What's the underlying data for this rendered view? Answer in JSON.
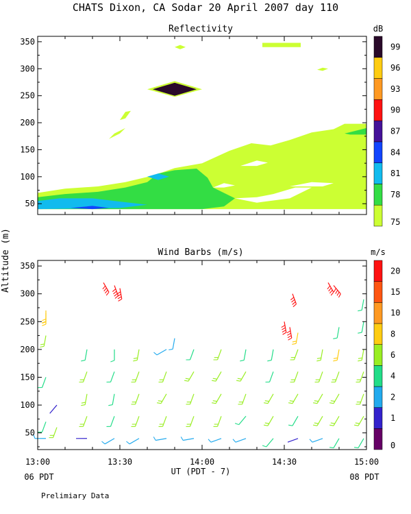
{
  "figure": {
    "title": "CHATS Dixon, CA  Sodar  20 April 2007  day 110",
    "ylabel": "Altitude (m)",
    "xlabel": "UT  (PDT - 7)",
    "left_date": "06 PDT",
    "right_date": "08 PDT",
    "footnote": "Prelimiary Data"
  },
  "chart_data": [
    {
      "type": "heatmap",
      "title": "Reflectivity",
      "x_tick_labels": [],
      "y_tick_labels": [
        "50",
        "100",
        "150",
        "200",
        "250",
        "300",
        "350"
      ],
      "y_ticks": [
        50,
        100,
        150,
        200,
        250,
        300,
        350
      ],
      "xlim_minutes": [
        0,
        120
      ],
      "ylim": [
        30,
        360
      ],
      "colorbar": {
        "unit": "dB",
        "levels": [
          "75",
          "78",
          "81",
          "84",
          "87",
          "90",
          "93",
          "96",
          "99"
        ],
        "colors": [
          "#ccff33",
          "#33dd44",
          "#11bbee",
          "#1144ff",
          "#441199",
          "#ff1111",
          "#ff9922",
          "#ffcc11",
          "#2a0a2a"
        ]
      },
      "regions": [
        {
          "level": "75",
          "points": [
            [
              0,
              70
            ],
            [
              10,
              78
            ],
            [
              22,
              82
            ],
            [
              32,
              90
            ],
            [
              42,
              102
            ],
            [
              50,
              116
            ],
            [
              60,
              125
            ],
            [
              70,
              148
            ],
            [
              78,
              162
            ],
            [
              85,
              158
            ],
            [
              92,
              168
            ],
            [
              100,
              182
            ],
            [
              108,
              188
            ],
            [
              112,
              198
            ],
            [
              120,
              198
            ],
            [
              120,
              40
            ],
            [
              0,
              40
            ]
          ]
        },
        {
          "level": "75",
          "points": [
            [
              26,
              170
            ],
            [
              30,
              180
            ],
            [
              32,
              190
            ],
            [
              28,
              180
            ]
          ]
        },
        {
          "level": "75",
          "points": [
            [
              30,
              205
            ],
            [
              32,
              220
            ],
            [
              34,
              222
            ],
            [
              32,
              208
            ]
          ]
        },
        {
          "level": "75",
          "points": [
            [
              82,
              340
            ],
            [
              96,
              340
            ],
            [
              96,
              348
            ],
            [
              82,
              348
            ]
          ]
        },
        {
          "level": "75",
          "points": [
            [
              102,
              298
            ],
            [
              104,
              302
            ],
            [
              106,
              300
            ],
            [
              104,
              296
            ]
          ]
        },
        {
          "level": "75",
          "points": [
            [
              50,
              340
            ],
            [
              52,
              344
            ],
            [
              54,
              340
            ],
            [
              52,
              336
            ]
          ]
        },
        {
          "level": "78",
          "points": [
            [
              0,
              62
            ],
            [
              10,
              68
            ],
            [
              22,
              72
            ],
            [
              32,
              80
            ],
            [
              40,
              90
            ],
            [
              44,
              106
            ],
            [
              50,
              112
            ],
            [
              58,
              115
            ],
            [
              62,
              98
            ],
            [
              64,
              80
            ],
            [
              72,
              60
            ],
            [
              68,
              45
            ],
            [
              60,
              40
            ],
            [
              0,
              40
            ]
          ]
        },
        {
          "level": "78",
          "points": [
            [
              112,
              180
            ],
            [
              120,
              190
            ],
            [
              120,
              178
            ],
            [
              114,
              178
            ]
          ]
        },
        {
          "level": "81",
          "points": [
            [
              0,
              55
            ],
            [
              8,
              60
            ],
            [
              20,
              60
            ],
            [
              30,
              54
            ],
            [
              40,
              48
            ],
            [
              30,
              42
            ],
            [
              0,
              40
            ]
          ]
        },
        {
          "level": "81",
          "points": [
            [
              40,
              100
            ],
            [
              44,
              106
            ],
            [
              48,
              100
            ],
            [
              44,
              94
            ]
          ]
        },
        {
          "level": "84",
          "points": [
            [
              12,
              42
            ],
            [
              20,
              46
            ],
            [
              26,
              42
            ],
            [
              20,
              40
            ]
          ]
        },
        {
          "level": "75",
          "points": [
            [
              40,
              262
            ],
            [
              50,
              277
            ],
            [
              60,
              262
            ],
            [
              50,
              248
            ]
          ]
        },
        {
          "level": "99",
          "points": [
            [
              42,
              262
            ],
            [
              50,
              274
            ],
            [
              58,
              262
            ],
            [
              50,
              250
            ]
          ]
        }
      ],
      "blank_areas": [
        {
          "points": [
            [
              72,
              60
            ],
            [
              80,
              52
            ],
            [
              92,
              60
            ],
            [
              100,
              80
            ],
            [
              94,
              80
            ],
            [
              86,
              68
            ],
            [
              80,
              62
            ]
          ]
        },
        {
          "points": [
            [
              92,
              82
            ],
            [
              100,
              90
            ],
            [
              108,
              88
            ],
            [
              104,
              82
            ]
          ]
        },
        {
          "points": [
            [
              74,
              120
            ],
            [
              80,
              130
            ],
            [
              84,
              126
            ],
            [
              80,
              120
            ]
          ]
        },
        {
          "points": [
            [
              64,
              80
            ],
            [
              68,
              88
            ],
            [
              72,
              84
            ],
            [
              68,
              80
            ]
          ]
        }
      ]
    },
    {
      "type": "scatter",
      "title": "Wind Barbs (m/s)",
      "x_tick_labels": [
        "13:00",
        "13:30",
        "14:00",
        "14:30",
        "15:00"
      ],
      "x_ticks_minutes": [
        0,
        30,
        60,
        90,
        120
      ],
      "y_tick_labels": [
        "50",
        "100",
        "150",
        "200",
        "250",
        "300",
        "350"
      ],
      "y_ticks": [
        50,
        100,
        150,
        200,
        250,
        300,
        350
      ],
      "xlim_minutes": [
        0,
        120
      ],
      "ylim": [
        20,
        360
      ],
      "colorbar": {
        "unit": "m/s",
        "levels": [
          "0",
          "1",
          "2",
          "4",
          "6",
          "8",
          "10",
          "15",
          "20"
        ],
        "colors": [
          "#660066",
          "#3322cc",
          "#22aaee",
          "#22dd88",
          "#99ee22",
          "#ffcc11",
          "#ff9922",
          "#ff5511",
          "#ff1111"
        ]
      },
      "columns_minutes": [
        3,
        7,
        18,
        24,
        34,
        45,
        50,
        58,
        68,
        78,
        88,
        97,
        108,
        116
      ],
      "samples": [
        {
          "t": 3,
          "alt": 40,
          "speed": 2,
          "dir": 270
        },
        {
          "t": 3,
          "alt": 70,
          "speed": 4,
          "dir": 200
        },
        {
          "t": 3,
          "alt": 150,
          "speed": 4,
          "dir": 200
        },
        {
          "t": 3,
          "alt": 225,
          "speed": 6,
          "dir": 190
        },
        {
          "t": 3,
          "alt": 265,
          "speed": 8,
          "dir": 180
        },
        {
          "t": 3,
          "alt": 270,
          "speed": 8,
          "dir": 180
        },
        {
          "t": 7,
          "alt": 100,
          "speed": 1,
          "dir": 220
        },
        {
          "t": 7,
          "alt": 60,
          "speed": 6,
          "dir": 200
        },
        {
          "t": 18,
          "alt": 40,
          "speed": 1,
          "dir": 270
        },
        {
          "t": 18,
          "alt": 80,
          "speed": 6,
          "dir": 200
        },
        {
          "t": 18,
          "alt": 120,
          "speed": 6,
          "dir": 190
        },
        {
          "t": 18,
          "alt": 160,
          "speed": 6,
          "dir": 200
        },
        {
          "t": 18,
          "alt": 200,
          "speed": 4,
          "dir": 190
        },
        {
          "t": 24,
          "alt": 320,
          "speed": 20,
          "dir": 150
        },
        {
          "t": 28,
          "alt": 315,
          "speed": 20,
          "dir": 160
        },
        {
          "t": 30,
          "alt": 310,
          "speed": 20,
          "dir": 170
        },
        {
          "t": 28,
          "alt": 40,
          "speed": 2,
          "dir": 240
        },
        {
          "t": 28,
          "alt": 80,
          "speed": 4,
          "dir": 200
        },
        {
          "t": 28,
          "alt": 120,
          "speed": 4,
          "dir": 190
        },
        {
          "t": 28,
          "alt": 160,
          "speed": 4,
          "dir": 200
        },
        {
          "t": 28,
          "alt": 200,
          "speed": 4,
          "dir": 180
        },
        {
          "t": 37,
          "alt": 40,
          "speed": 2,
          "dir": 240
        },
        {
          "t": 37,
          "alt": 80,
          "speed": 6,
          "dir": 200
        },
        {
          "t": 37,
          "alt": 120,
          "speed": 6,
          "dir": 200
        },
        {
          "t": 37,
          "alt": 160,
          "speed": 6,
          "dir": 200
        },
        {
          "t": 37,
          "alt": 200,
          "speed": 6,
          "dir": 190
        },
        {
          "t": 47,
          "alt": 40,
          "speed": 2,
          "dir": 260
        },
        {
          "t": 47,
          "alt": 80,
          "speed": 6,
          "dir": 200
        },
        {
          "t": 47,
          "alt": 120,
          "speed": 6,
          "dir": 210
        },
        {
          "t": 47,
          "alt": 160,
          "speed": 6,
          "dir": 200
        },
        {
          "t": 47,
          "alt": 200,
          "speed": 2,
          "dir": 240
        },
        {
          "t": 50,
          "alt": 220,
          "speed": 2,
          "dir": 190
        },
        {
          "t": 57,
          "alt": 40,
          "speed": 2,
          "dir": 260
        },
        {
          "t": 57,
          "alt": 80,
          "speed": 6,
          "dir": 200
        },
        {
          "t": 57,
          "alt": 120,
          "speed": 6,
          "dir": 200
        },
        {
          "t": 57,
          "alt": 160,
          "speed": 6,
          "dir": 210
        },
        {
          "t": 57,
          "alt": 200,
          "speed": 4,
          "dir": 200
        },
        {
          "t": 67,
          "alt": 40,
          "speed": 2,
          "dir": 250
        },
        {
          "t": 67,
          "alt": 80,
          "speed": 6,
          "dir": 200
        },
        {
          "t": 67,
          "alt": 120,
          "speed": 6,
          "dir": 210
        },
        {
          "t": 67,
          "alt": 160,
          "speed": 6,
          "dir": 210
        },
        {
          "t": 67,
          "alt": 200,
          "speed": 6,
          "dir": 200
        },
        {
          "t": 76,
          "alt": 40,
          "speed": 2,
          "dir": 250
        },
        {
          "t": 76,
          "alt": 80,
          "speed": 4,
          "dir": 220
        },
        {
          "t": 76,
          "alt": 120,
          "speed": 6,
          "dir": 200
        },
        {
          "t": 76,
          "alt": 160,
          "speed": 6,
          "dir": 210
        },
        {
          "t": 76,
          "alt": 200,
          "speed": 4,
          "dir": 190
        },
        {
          "t": 86,
          "alt": 40,
          "speed": 4,
          "dir": 220
        },
        {
          "t": 86,
          "alt": 80,
          "speed": 6,
          "dir": 210
        },
        {
          "t": 86,
          "alt": 120,
          "speed": 6,
          "dir": 210
        },
        {
          "t": 86,
          "alt": 160,
          "speed": 4,
          "dir": 200
        },
        {
          "t": 86,
          "alt": 200,
          "speed": 4,
          "dir": 190
        },
        {
          "t": 92,
          "alt": 240,
          "speed": 20,
          "dir": 170
        },
        {
          "t": 93,
          "alt": 300,
          "speed": 20,
          "dir": 160
        },
        {
          "t": 90,
          "alt": 250,
          "speed": 20,
          "dir": 170
        },
        {
          "t": 95,
          "alt": 40,
          "speed": 1,
          "dir": 250
        },
        {
          "t": 95,
          "alt": 80,
          "speed": 4,
          "dir": 210
        },
        {
          "t": 95,
          "alt": 120,
          "speed": 6,
          "dir": 210
        },
        {
          "t": 95,
          "alt": 160,
          "speed": 6,
          "dir": 200
        },
        {
          "t": 95,
          "alt": 200,
          "speed": 6,
          "dir": 200
        },
        {
          "t": 95,
          "alt": 230,
          "speed": 8,
          "dir": 190
        },
        {
          "t": 104,
          "alt": 40,
          "speed": 2,
          "dir": 250
        },
        {
          "t": 104,
          "alt": 80,
          "speed": 6,
          "dir": 210
        },
        {
          "t": 104,
          "alt": 120,
          "speed": 6,
          "dir": 210
        },
        {
          "t": 104,
          "alt": 160,
          "speed": 6,
          "dir": 200
        },
        {
          "t": 104,
          "alt": 200,
          "speed": 6,
          "dir": 190
        },
        {
          "t": 106,
          "alt": 320,
          "speed": 20,
          "dir": 150
        },
        {
          "t": 108,
          "alt": 315,
          "speed": 20,
          "dir": 140
        },
        {
          "t": 110,
          "alt": 40,
          "speed": 4,
          "dir": 210
        },
        {
          "t": 110,
          "alt": 80,
          "speed": 6,
          "dir": 210
        },
        {
          "t": 110,
          "alt": 120,
          "speed": 6,
          "dir": 210
        },
        {
          "t": 110,
          "alt": 160,
          "speed": 6,
          "dir": 200
        },
        {
          "t": 110,
          "alt": 200,
          "speed": 8,
          "dir": 190
        },
        {
          "t": 110,
          "alt": 240,
          "speed": 4,
          "dir": 190
        },
        {
          "t": 119,
          "alt": 40,
          "speed": 4,
          "dir": 210
        },
        {
          "t": 119,
          "alt": 80,
          "speed": 6,
          "dir": 210
        },
        {
          "t": 119,
          "alt": 120,
          "speed": 6,
          "dir": 200
        },
        {
          "t": 119,
          "alt": 160,
          "speed": 6,
          "dir": 200
        },
        {
          "t": 119,
          "alt": 200,
          "speed": 6,
          "dir": 190
        },
        {
          "t": 119,
          "alt": 250,
          "speed": 4,
          "dir": 190
        },
        {
          "t": 119,
          "alt": 290,
          "speed": 4,
          "dir": 190
        }
      ]
    }
  ]
}
